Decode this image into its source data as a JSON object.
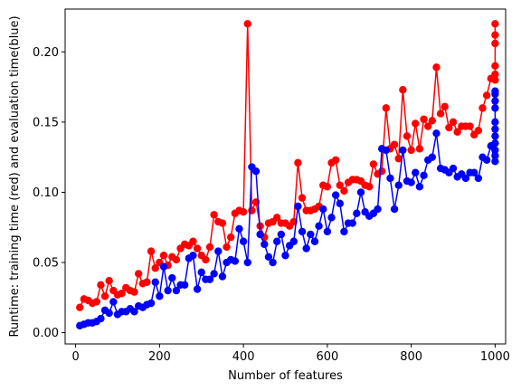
{
  "chart_data": {
    "type": "line",
    "title": "",
    "xlabel": "Number of features",
    "ylabel": "Runtime: training time (red) and evaluation time(blue)",
    "xlim": [
      -25,
      1025
    ],
    "ylim": [
      -0.008,
      0.2305
    ],
    "xticks": [
      0,
      200,
      400,
      600,
      800,
      1000
    ],
    "xtick_labels": [
      "0",
      "200",
      "400",
      "600",
      "800",
      "1000"
    ],
    "yticks": [
      0.0,
      0.05,
      0.1,
      0.15,
      0.2
    ],
    "ytick_labels": [
      "0.00",
      "0.05",
      "0.10",
      "0.15",
      "0.20"
    ],
    "grid": false,
    "legend": "none",
    "series": [
      {
        "color": "#ff0000",
        "x": [
          10,
          20,
          30,
          40,
          50,
          60,
          70,
          80,
          90,
          100,
          110,
          120,
          130,
          140,
          150,
          160,
          170,
          180,
          190,
          200,
          210,
          220,
          230,
          240,
          250,
          260,
          270,
          280,
          290,
          300,
          310,
          320,
          330,
          340,
          350,
          360,
          370,
          380,
          390,
          400,
          410,
          420,
          430,
          440,
          450,
          460,
          470,
          480,
          490,
          500,
          510,
          520,
          530,
          540,
          550,
          560,
          570,
          580,
          590,
          600,
          610,
          620,
          630,
          640,
          650,
          660,
          670,
          680,
          690,
          700,
          710,
          720,
          730,
          740,
          750,
          760,
          770,
          780,
          790,
          800,
          810,
          820,
          830,
          840,
          850,
          860,
          870,
          880,
          890,
          900,
          910,
          920,
          930,
          940,
          950,
          960,
          970,
          980,
          990,
          1000,
          1000,
          1000,
          1000,
          1000,
          1000,
          1000
        ],
        "y": [
          0.018,
          0.024,
          0.023,
          0.021,
          0.022,
          0.034,
          0.026,
          0.037,
          0.03,
          0.027,
          0.028,
          0.032,
          0.03,
          0.029,
          0.042,
          0.035,
          0.036,
          0.058,
          0.046,
          0.05,
          0.055,
          0.048,
          0.054,
          0.052,
          0.06,
          0.063,
          0.062,
          0.065,
          0.06,
          0.055,
          0.052,
          0.061,
          0.084,
          0.079,
          0.078,
          0.061,
          0.068,
          0.085,
          0.087,
          0.086,
          0.22,
          0.087,
          0.093,
          0.076,
          0.068,
          0.078,
          0.079,
          0.082,
          0.078,
          0.078,
          0.076,
          0.079,
          0.121,
          0.096,
          0.087,
          0.087,
          0.088,
          0.09,
          0.105,
          0.104,
          0.121,
          0.123,
          0.105,
          0.101,
          0.107,
          0.109,
          0.109,
          0.108,
          0.105,
          0.104,
          0.12,
          0.113,
          0.115,
          0.16,
          0.131,
          0.134,
          0.124,
          0.173,
          0.14,
          0.13,
          0.149,
          0.131,
          0.152,
          0.147,
          0.151,
          0.189,
          0.156,
          0.161,
          0.146,
          0.15,
          0.143,
          0.147,
          0.147,
          0.147,
          0.141,
          0.144,
          0.16,
          0.169,
          0.181,
          0.18,
          0.22,
          0.212,
          0.206,
          0.19,
          0.184,
          0.18
        ]
      },
      {
        "color": "#0000ff",
        "x": [
          10,
          20,
          30,
          40,
          50,
          60,
          70,
          80,
          90,
          100,
          110,
          120,
          130,
          140,
          150,
          160,
          170,
          180,
          190,
          200,
          210,
          220,
          230,
          240,
          250,
          260,
          270,
          280,
          290,
          300,
          310,
          320,
          330,
          340,
          350,
          360,
          370,
          380,
          390,
          400,
          410,
          420,
          430,
          440,
          450,
          460,
          470,
          480,
          490,
          500,
          510,
          520,
          530,
          540,
          550,
          560,
          570,
          580,
          590,
          600,
          610,
          620,
          630,
          640,
          650,
          660,
          670,
          680,
          690,
          700,
          710,
          720,
          730,
          740,
          750,
          760,
          770,
          780,
          790,
          800,
          810,
          820,
          830,
          840,
          850,
          860,
          870,
          880,
          890,
          900,
          910,
          920,
          930,
          940,
          950,
          960,
          970,
          980,
          990,
          1000,
          1000,
          1000,
          1000,
          1000,
          1000,
          1000,
          1000,
          1000,
          1000,
          1000
        ],
        "y": [
          0.005,
          0.006,
          0.007,
          0.007,
          0.008,
          0.01,
          0.016,
          0.014,
          0.022,
          0.013,
          0.015,
          0.015,
          0.017,
          0.015,
          0.019,
          0.018,
          0.02,
          0.021,
          0.036,
          0.026,
          0.047,
          0.03,
          0.039,
          0.03,
          0.034,
          0.034,
          0.053,
          0.055,
          0.031,
          0.043,
          0.038,
          0.038,
          0.042,
          0.058,
          0.04,
          0.05,
          0.052,
          0.051,
          0.074,
          0.065,
          0.05,
          0.118,
          0.115,
          0.07,
          0.063,
          0.054,
          0.05,
          0.065,
          0.07,
          0.055,
          0.062,
          0.065,
          0.09,
          0.072,
          0.06,
          0.07,
          0.065,
          0.076,
          0.088,
          0.072,
          0.082,
          0.098,
          0.092,
          0.072,
          0.078,
          0.078,
          0.085,
          0.1,
          0.086,
          0.083,
          0.085,
          0.088,
          0.131,
          0.13,
          0.11,
          0.088,
          0.105,
          0.13,
          0.108,
          0.107,
          0.114,
          0.104,
          0.112,
          0.123,
          0.125,
          0.142,
          0.117,
          0.116,
          0.114,
          0.117,
          0.111,
          0.113,
          0.11,
          0.114,
          0.114,
          0.11,
          0.125,
          0.123,
          0.133,
          0.122,
          0.126,
          0.13,
          0.135,
          0.14,
          0.145,
          0.15,
          0.16,
          0.165,
          0.17,
          0.172
        ]
      }
    ]
  }
}
